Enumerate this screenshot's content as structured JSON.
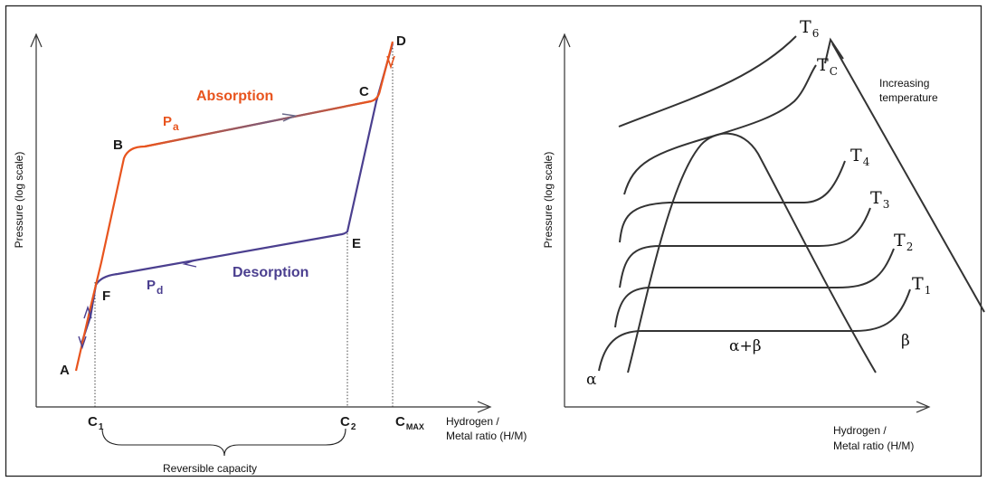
{
  "left_panel": {
    "y_axis_label": "Pressure (log scale)",
    "x_axis_label_line1": "Hydrogen /",
    "x_axis_label_line2": "Metal ratio (H/M)",
    "points": {
      "A": "A",
      "B": "B",
      "C": "C",
      "D": "D",
      "E": "E",
      "F": "F"
    },
    "absorption_label": "Absorption",
    "desorption_label": "Desorption",
    "pa_main": "P",
    "pa_sub": "a",
    "pd_main": "P",
    "pd_sub": "d",
    "c1_main": "C",
    "c1_sub": "1",
    "c2_main": "C",
    "c2_sub": "2",
    "cmax_main": "C",
    "cmax_sub": "MAX",
    "reversible_capacity": "Reversible capacity",
    "colors": {
      "absorption": "#e8541e",
      "desorption": "#4b3f8f",
      "axis": "#333333"
    }
  },
  "right_panel": {
    "y_axis_label": "Pressure (log scale)",
    "x_axis_label_line1": "Hydrogen /",
    "x_axis_label_line2": "Metal ratio (H/M)",
    "increasing_line1": "Increasing",
    "increasing_line2": "temperature",
    "isotherms": [
      {
        "main": "T",
        "sub": "6"
      },
      {
        "main": "T",
        "sub": "C"
      },
      {
        "main": "T",
        "sub": "4"
      },
      {
        "main": "T",
        "sub": "3"
      },
      {
        "main": "T",
        "sub": "2"
      },
      {
        "main": "T",
        "sub": "1"
      }
    ],
    "alpha": "α",
    "beta": "β",
    "alpha_beta": "α+β"
  }
}
